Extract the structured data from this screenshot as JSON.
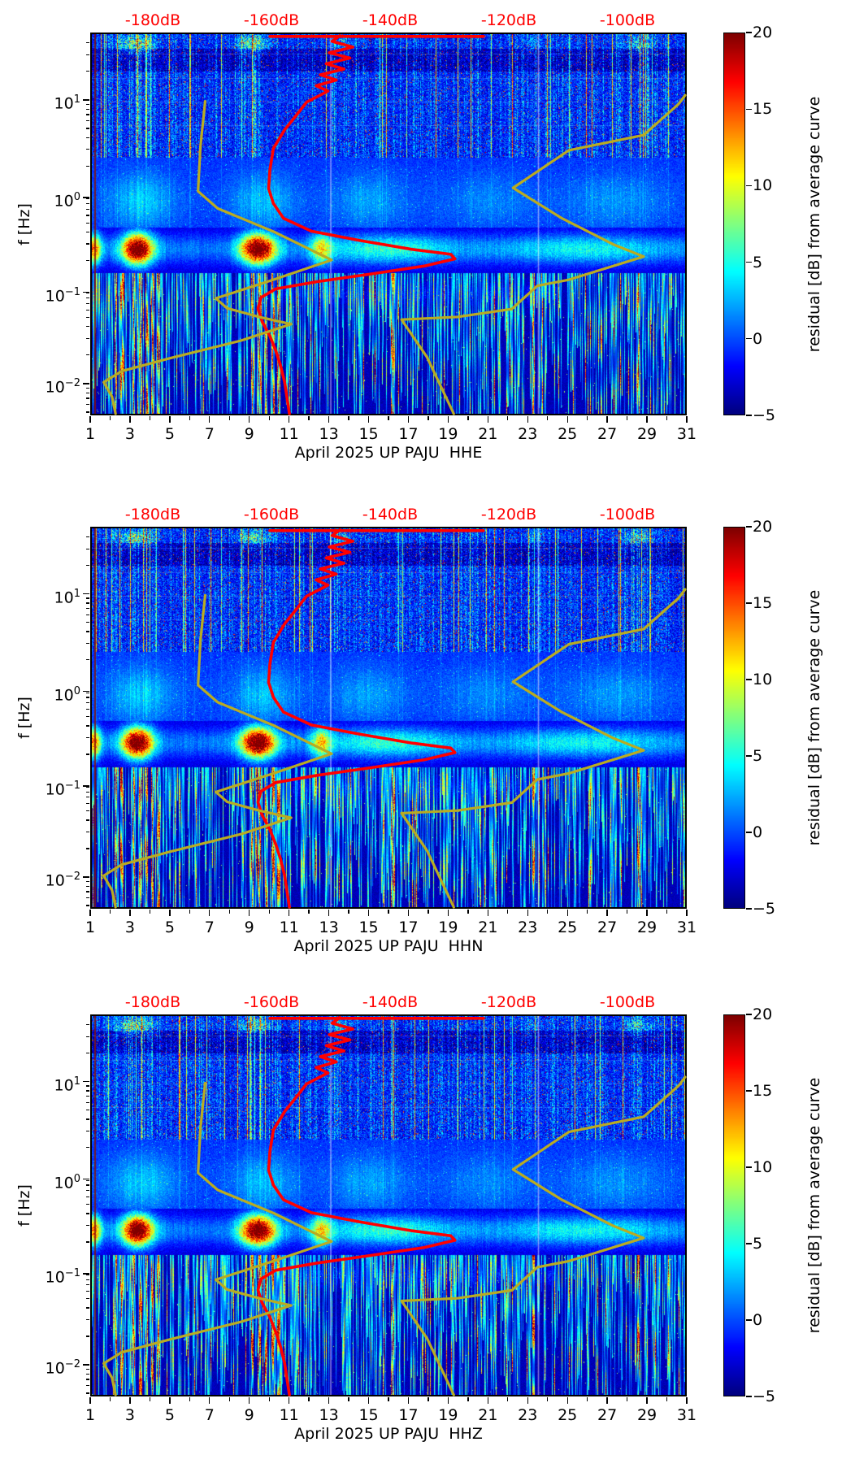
{
  "chart_data": {
    "type": "heatmap",
    "figure_kind": "seismic spectrogram residual triptych with PSD average curve and Peterson noise model overlays",
    "panels": [
      {
        "component": "HHE",
        "xlabel": "April 2025 UP PAJU  HHE"
      },
      {
        "component": "HHN",
        "xlabel": "April 2025 UP PAJU  HHN"
      },
      {
        "component": "HHZ",
        "xlabel": "April 2025 UP PAJU  HHZ"
      }
    ],
    "x_axis": {
      "tick_labels": [
        "1",
        "3",
        "5",
        "7",
        "9",
        "11",
        "13",
        "15",
        "17",
        "19",
        "21",
        "23",
        "25",
        "27",
        "29",
        "31"
      ],
      "range_days": [
        1,
        31
      ],
      "minor_ticks": "even days"
    },
    "y_axis": {
      "label": "f [Hz]",
      "scale": "log",
      "tick_labels": [
        {
          "m": "10",
          "e": "1"
        },
        {
          "m": "10",
          "e": "0"
        },
        {
          "m": "10",
          "e": "−1"
        },
        {
          "m": "10",
          "e": "−2"
        }
      ],
      "range_hz": [
        0.0064,
        51
      ]
    },
    "top_axis": {
      "color": "#ff0000",
      "tick_labels": [
        "-180dB",
        "-160dB",
        "-140dB",
        "-120dB",
        "-100dB"
      ]
    },
    "colorbar": {
      "label": "residual [dB] from average curve",
      "tick_labels": [
        "20",
        "15",
        "10",
        "5",
        "0",
        "−5"
      ],
      "tick_values": [
        20,
        15,
        10,
        5,
        0,
        -5
      ],
      "range": [
        -5,
        20
      ],
      "colormap": "jet"
    },
    "overlay_curves": {
      "average_psd_color": "#ff0000",
      "noise_model_color": "#b9ab22",
      "average_psd_top_segment": [
        [
          0.3,
          0.006
        ],
        [
          0.66,
          0.006
        ]
      ],
      "average_psd": [
        [
          0.418,
          0.004
        ],
        [
          0.405,
          0.019
        ],
        [
          0.44,
          0.034
        ],
        [
          0.4,
          0.049
        ],
        [
          0.435,
          0.063
        ],
        [
          0.395,
          0.078
        ],
        [
          0.425,
          0.092
        ],
        [
          0.385,
          0.107
        ],
        [
          0.412,
          0.121
        ],
        [
          0.378,
          0.136
        ],
        [
          0.398,
          0.15
        ],
        [
          0.362,
          0.179
        ],
        [
          0.345,
          0.213
        ],
        [
          0.325,
          0.252
        ],
        [
          0.306,
          0.301
        ],
        [
          0.3,
          0.359
        ],
        [
          0.298,
          0.407
        ],
        [
          0.306,
          0.446
        ],
        [
          0.323,
          0.485
        ],
        [
          0.37,
          0.519
        ],
        [
          0.45,
          0.543
        ],
        [
          0.54,
          0.567
        ],
        [
          0.605,
          0.58
        ],
        [
          0.612,
          0.592
        ],
        [
          0.56,
          0.611
        ],
        [
          0.47,
          0.632
        ],
        [
          0.38,
          0.652
        ],
        [
          0.31,
          0.671
        ],
        [
          0.285,
          0.694
        ],
        [
          0.28,
          0.723
        ],
        [
          0.287,
          0.757
        ],
        [
          0.3,
          0.795
        ],
        [
          0.31,
          0.834
        ],
        [
          0.318,
          0.873
        ],
        [
          0.325,
          0.917
        ],
        [
          0.333,
          1.0
        ]
      ],
      "low_noise_model": [
        [
          0.191,
          0.177
        ],
        [
          0.183,
          0.297
        ],
        [
          0.179,
          0.414
        ],
        [
          0.212,
          0.459
        ],
        [
          0.306,
          0.52
        ],
        [
          0.404,
          0.595
        ],
        [
          0.306,
          0.647
        ],
        [
          0.209,
          0.696
        ],
        [
          0.228,
          0.722
        ],
        [
          0.282,
          0.745
        ],
        [
          0.336,
          0.764
        ],
        [
          0.252,
          0.807
        ],
        [
          0.131,
          0.854
        ],
        [
          0.05,
          0.888
        ],
        [
          0.02,
          0.917
        ],
        [
          0.034,
          0.955
        ],
        [
          0.04,
          1.0
        ]
      ],
      "high_noise_model": [
        [
          1.0,
          0.161
        ],
        [
          0.989,
          0.184
        ],
        [
          0.93,
          0.266
        ],
        [
          0.804,
          0.306
        ],
        [
          0.748,
          0.365
        ],
        [
          0.71,
          0.405
        ],
        [
          0.791,
          0.484
        ],
        [
          0.879,
          0.554
        ],
        [
          0.93,
          0.586
        ],
        [
          0.804,
          0.647
        ],
        [
          0.751,
          0.663
        ],
        [
          0.708,
          0.724
        ],
        [
          0.616,
          0.745
        ],
        [
          0.522,
          0.752
        ],
        [
          0.565,
          0.851
        ],
        [
          0.61,
          1.0
        ]
      ]
    },
    "noise_model_params": {
      "hf_storm_days": [
        [
          3.2,
          0.9,
          9
        ],
        [
          9.2,
          0.8,
          8
        ],
        [
          13.6,
          0.5,
          4
        ],
        [
          28.6,
          0.7,
          6
        ],
        [
          23.3,
          0.4,
          3
        ]
      ],
      "cloud_days": [
        [
          3.5,
          1.6,
          3.4
        ],
        [
          9.7,
          1.5,
          3.2
        ],
        [
          15.0,
          1.8,
          2.4
        ],
        [
          21.0,
          2.2,
          1.6
        ],
        [
          27.5,
          2.5,
          2.0
        ]
      ],
      "microseism_blobs": [
        [
          1.1,
          0.35,
          14
        ],
        [
          3.3,
          0.75,
          23
        ],
        [
          9.4,
          0.85,
          23
        ],
        [
          12.6,
          0.5,
          10
        ],
        [
          16.0,
          3.0,
          4.5
        ],
        [
          26.0,
          4.0,
          3.5
        ]
      ],
      "red_bar_days": [
        2.2,
        2.5,
        3.1,
        3.45,
        3.75,
        4.05,
        4.35,
        9.1,
        9.45,
        9.8,
        10.15,
        10.45,
        16.2,
        23.35,
        28.65
      ],
      "pale_line_days": [
        13.05,
        23.55
      ]
    }
  }
}
